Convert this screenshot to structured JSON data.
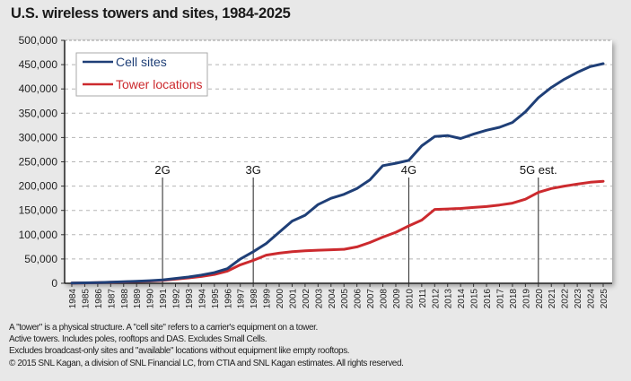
{
  "title": "U.S. wireless towers and sites, 1984-2025",
  "chart_data": {
    "type": "line",
    "title": "U.S. wireless towers and sites, 1984-2025",
    "x": [
      1984,
      1985,
      1986,
      1987,
      1988,
      1989,
      1990,
      1991,
      1992,
      1993,
      1994,
      1995,
      1996,
      1997,
      1998,
      1999,
      2000,
      2001,
      2002,
      2003,
      2004,
      2005,
      2006,
      2007,
      2008,
      2009,
      2010,
      2011,
      2012,
      2013,
      2014,
      2015,
      2016,
      2017,
      2018,
      2019,
      2020,
      2021,
      2022,
      2023,
      2024,
      2025
    ],
    "series": [
      {
        "name": "Cell sites",
        "color": "#1f3f77",
        "values": [
          300,
          900,
          1500,
          2300,
          3200,
          4200,
          5300,
          7000,
          10000,
          13000,
          17000,
          22000,
          30000,
          50000,
          65000,
          82000,
          105000,
          128000,
          140000,
          162000,
          175000,
          183000,
          195000,
          213000,
          242000,
          247000,
          253000,
          283000,
          302000,
          304000,
          298000,
          307000,
          315000,
          321000,
          331000,
          353000,
          382000,
          403000,
          420000,
          434000,
          446000,
          452000
        ]
      },
      {
        "name": "Tower locations",
        "color": "#cc2a2e",
        "values": [
          300,
          800,
          1300,
          2000,
          2800,
          3700,
          4700,
          6000,
          8500,
          11000,
          14000,
          18000,
          25000,
          38000,
          47000,
          58000,
          62000,
          65000,
          67000,
          68000,
          69000,
          70000,
          75000,
          84000,
          95000,
          105000,
          118000,
          130000,
          152000,
          153000,
          154000,
          156000,
          158000,
          161000,
          165000,
          173000,
          187000,
          195000,
          200000,
          204000,
          208000,
          210000
        ]
      }
    ],
    "annotations": [
      {
        "label": "2G",
        "x": 1991
      },
      {
        "label": "3G",
        "x": 1998
      },
      {
        "label": "4G",
        "x": 2010
      },
      {
        "label": "5G est.",
        "x": 2020
      }
    ],
    "ylim": [
      0,
      500000
    ],
    "yticks": [
      "0",
      "50,000",
      "100,000",
      "150,000",
      "200,000",
      "250,000",
      "300,000",
      "350,000",
      "400,000",
      "450,000",
      "500,000"
    ],
    "xlim": [
      1984,
      2025
    ],
    "grid": "horizontal dashed",
    "legend": "top-left"
  },
  "notes": [
    "A \"tower\" is a physical structure.  A \"cell site\" refers to a carrier's equipment on a tower.",
    "Active towers.  Includes poles, rooftops and DAS.  Excludes Small Cells.",
    "Excludes broadcast-only sites and \"available\" locations without equipment like empty rooftops.",
    "© 2015 SNL Kagan, a division of SNL Financial LC, from CTIA and SNL Kagan estimates. All rights reserved."
  ]
}
